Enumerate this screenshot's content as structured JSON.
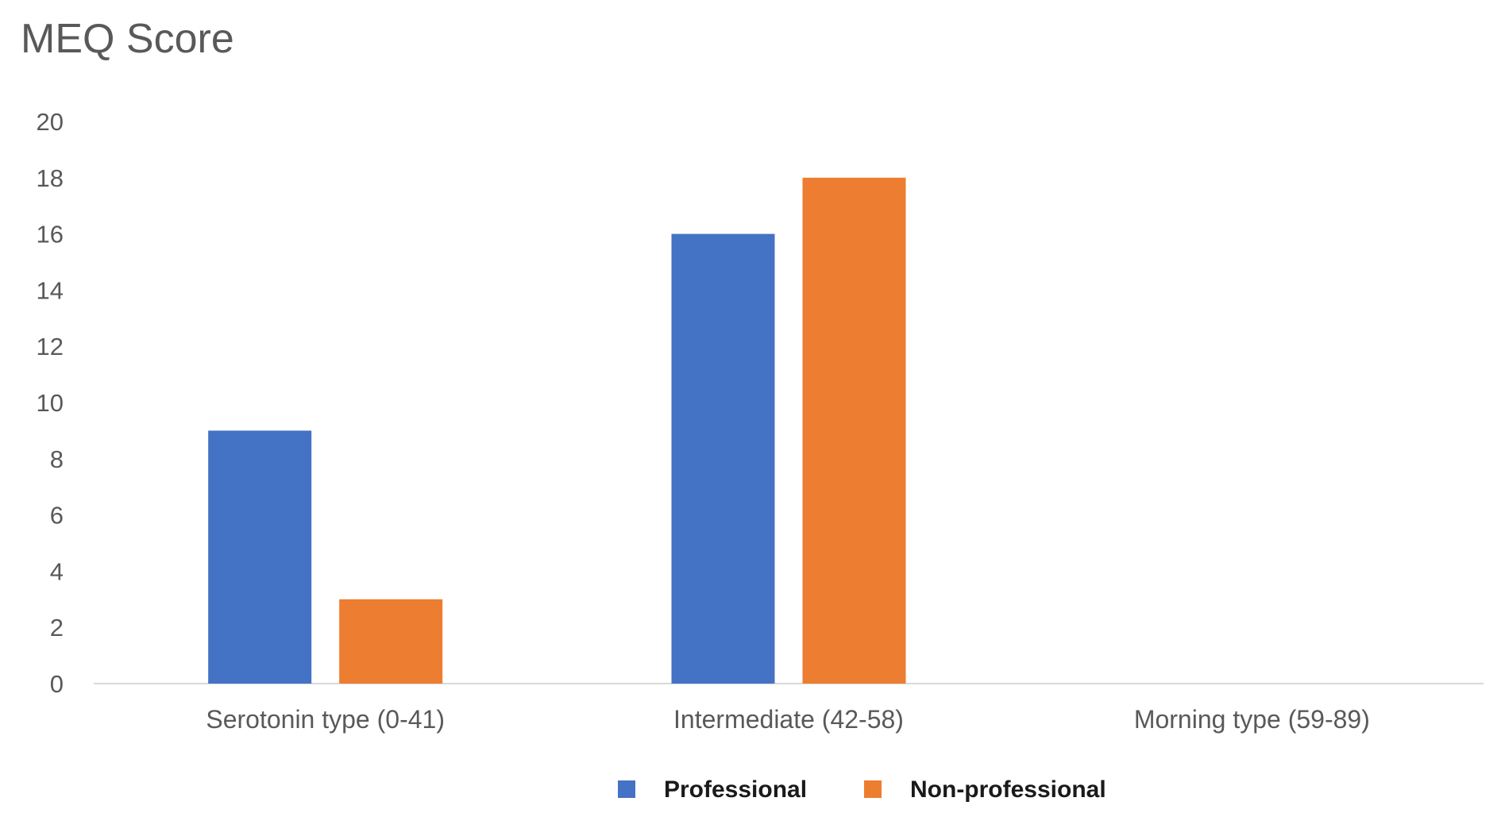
{
  "chart_data": {
    "type": "bar",
    "title": "MEQ Score",
    "xlabel": "",
    "ylabel": "",
    "categories": [
      "Serotonin type (0-41)",
      "Intermediate (42-58)",
      "Morning type (59-89)"
    ],
    "series": [
      {
        "name": "Professional",
        "values": [
          9,
          16,
          0
        ],
        "color": "#4472C4"
      },
      {
        "name": "Non-professional",
        "values": [
          3,
          18,
          0
        ],
        "color": "#ED7D31"
      }
    ],
    "ylim": [
      0,
      20
    ],
    "yticks": [
      0,
      2,
      4,
      6,
      8,
      10,
      12,
      14,
      16,
      18,
      20
    ],
    "grid": false,
    "legend_position": "bottom"
  }
}
